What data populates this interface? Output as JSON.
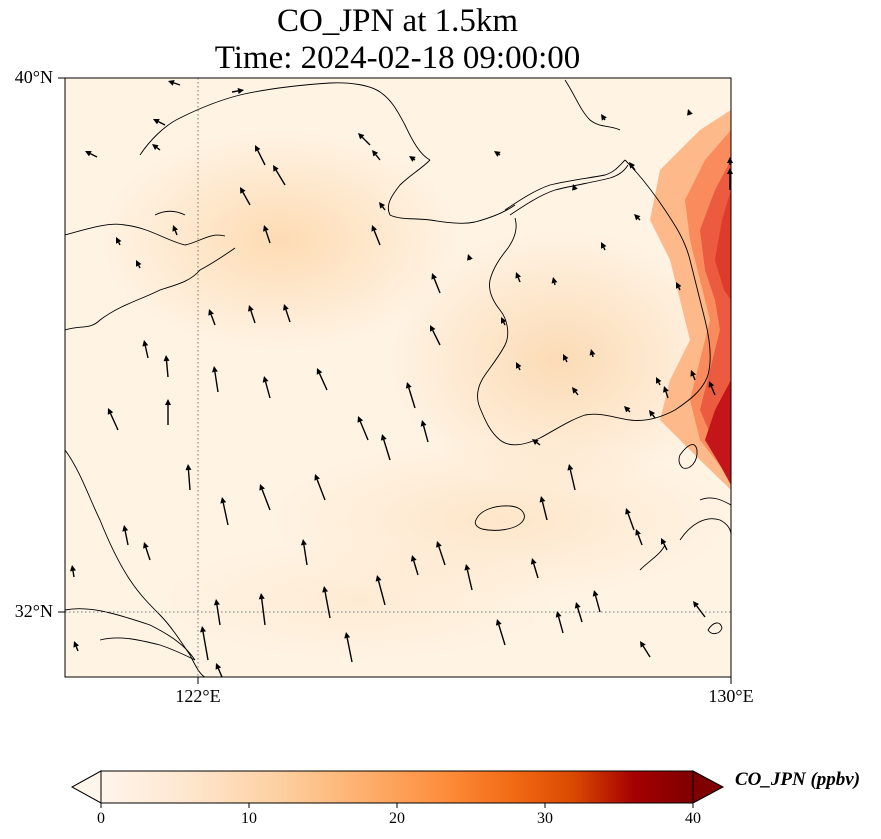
{
  "title_line1": "CO_JPN at 1.5km",
  "title_line2": "Time: 2024-02-18 09:00:00",
  "lat_labels": [
    "40°N",
    "32°N"
  ],
  "lon_labels": [
    "122°E",
    "130°E"
  ],
  "colorbar": {
    "label": "CO_JPN (ppbv)",
    "ticks": [
      "0",
      "10",
      "20",
      "30",
      "40"
    ],
    "min": 0,
    "max": 40,
    "colors": [
      "#fff5eb",
      "#fee6ce",
      "#fdd0a2",
      "#fdae6b",
      "#fd8d3c",
      "#f16913",
      "#d94801",
      "#a50000",
      "#7f0000"
    ]
  },
  "map_extent": {
    "lon_min": 120,
    "lon_max": 130,
    "lat_min": 31,
    "lat_max": 40
  },
  "gridlines": {
    "lon": 122,
    "lat": 32,
    "style": "dotted"
  },
  "field_note": "low CO over sea and China (~2-8 ppbv), higher plume along eastern Korea and Japan coast (~20-35 ppbv)",
  "wind_arrows": "predominantly northward / north-northwest flow"
}
